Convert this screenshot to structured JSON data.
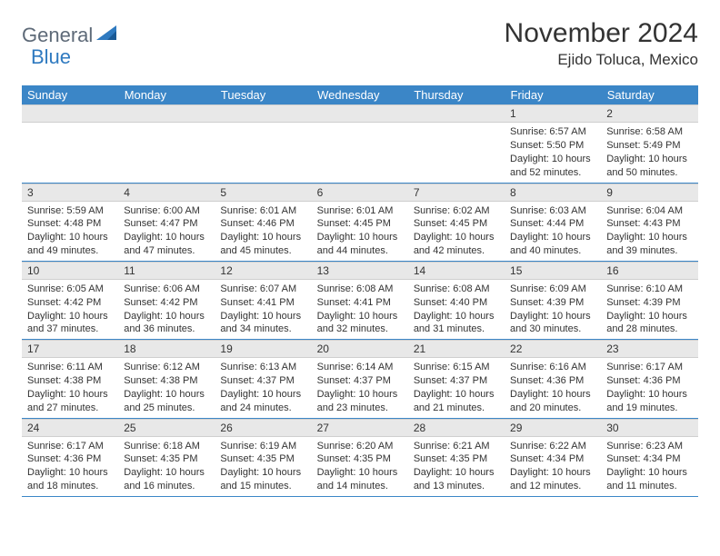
{
  "logo": {
    "part1": "General",
    "part2": "Blue"
  },
  "title": "November 2024",
  "location": "Ejido Toluca, Mexico",
  "colors": {
    "header_bg": "#3b86c7",
    "header_text": "#ffffff",
    "daynum_bg": "#e8e8e8",
    "border": "#3b86c7",
    "logo_gray": "#5e6a78",
    "logo_blue": "#2f7ac0",
    "text": "#333333",
    "page_bg": "#ffffff"
  },
  "weekdays": [
    "Sunday",
    "Monday",
    "Tuesday",
    "Wednesday",
    "Thursday",
    "Friday",
    "Saturday"
  ],
  "weeks": [
    [
      null,
      null,
      null,
      null,
      null,
      {
        "n": "1",
        "sunrise": "6:57 AM",
        "sunset": "5:50 PM",
        "daylight": "10 hours and 52 minutes."
      },
      {
        "n": "2",
        "sunrise": "6:58 AM",
        "sunset": "5:49 PM",
        "daylight": "10 hours and 50 minutes."
      }
    ],
    [
      {
        "n": "3",
        "sunrise": "5:59 AM",
        "sunset": "4:48 PM",
        "daylight": "10 hours and 49 minutes."
      },
      {
        "n": "4",
        "sunrise": "6:00 AM",
        "sunset": "4:47 PM",
        "daylight": "10 hours and 47 minutes."
      },
      {
        "n": "5",
        "sunrise": "6:01 AM",
        "sunset": "4:46 PM",
        "daylight": "10 hours and 45 minutes."
      },
      {
        "n": "6",
        "sunrise": "6:01 AM",
        "sunset": "4:45 PM",
        "daylight": "10 hours and 44 minutes."
      },
      {
        "n": "7",
        "sunrise": "6:02 AM",
        "sunset": "4:45 PM",
        "daylight": "10 hours and 42 minutes."
      },
      {
        "n": "8",
        "sunrise": "6:03 AM",
        "sunset": "4:44 PM",
        "daylight": "10 hours and 40 minutes."
      },
      {
        "n": "9",
        "sunrise": "6:04 AM",
        "sunset": "4:43 PM",
        "daylight": "10 hours and 39 minutes."
      }
    ],
    [
      {
        "n": "10",
        "sunrise": "6:05 AM",
        "sunset": "4:42 PM",
        "daylight": "10 hours and 37 minutes."
      },
      {
        "n": "11",
        "sunrise": "6:06 AM",
        "sunset": "4:42 PM",
        "daylight": "10 hours and 36 minutes."
      },
      {
        "n": "12",
        "sunrise": "6:07 AM",
        "sunset": "4:41 PM",
        "daylight": "10 hours and 34 minutes."
      },
      {
        "n": "13",
        "sunrise": "6:08 AM",
        "sunset": "4:41 PM",
        "daylight": "10 hours and 32 minutes."
      },
      {
        "n": "14",
        "sunrise": "6:08 AM",
        "sunset": "4:40 PM",
        "daylight": "10 hours and 31 minutes."
      },
      {
        "n": "15",
        "sunrise": "6:09 AM",
        "sunset": "4:39 PM",
        "daylight": "10 hours and 30 minutes."
      },
      {
        "n": "16",
        "sunrise": "6:10 AM",
        "sunset": "4:39 PM",
        "daylight": "10 hours and 28 minutes."
      }
    ],
    [
      {
        "n": "17",
        "sunrise": "6:11 AM",
        "sunset": "4:38 PM",
        "daylight": "10 hours and 27 minutes."
      },
      {
        "n": "18",
        "sunrise": "6:12 AM",
        "sunset": "4:38 PM",
        "daylight": "10 hours and 25 minutes."
      },
      {
        "n": "19",
        "sunrise": "6:13 AM",
        "sunset": "4:37 PM",
        "daylight": "10 hours and 24 minutes."
      },
      {
        "n": "20",
        "sunrise": "6:14 AM",
        "sunset": "4:37 PM",
        "daylight": "10 hours and 23 minutes."
      },
      {
        "n": "21",
        "sunrise": "6:15 AM",
        "sunset": "4:37 PM",
        "daylight": "10 hours and 21 minutes."
      },
      {
        "n": "22",
        "sunrise": "6:16 AM",
        "sunset": "4:36 PM",
        "daylight": "10 hours and 20 minutes."
      },
      {
        "n": "23",
        "sunrise": "6:17 AM",
        "sunset": "4:36 PM",
        "daylight": "10 hours and 19 minutes."
      }
    ],
    [
      {
        "n": "24",
        "sunrise": "6:17 AM",
        "sunset": "4:36 PM",
        "daylight": "10 hours and 18 minutes."
      },
      {
        "n": "25",
        "sunrise": "6:18 AM",
        "sunset": "4:35 PM",
        "daylight": "10 hours and 16 minutes."
      },
      {
        "n": "26",
        "sunrise": "6:19 AM",
        "sunset": "4:35 PM",
        "daylight": "10 hours and 15 minutes."
      },
      {
        "n": "27",
        "sunrise": "6:20 AM",
        "sunset": "4:35 PM",
        "daylight": "10 hours and 14 minutes."
      },
      {
        "n": "28",
        "sunrise": "6:21 AM",
        "sunset": "4:35 PM",
        "daylight": "10 hours and 13 minutes."
      },
      {
        "n": "29",
        "sunrise": "6:22 AM",
        "sunset": "4:34 PM",
        "daylight": "10 hours and 12 minutes."
      },
      {
        "n": "30",
        "sunrise": "6:23 AM",
        "sunset": "4:34 PM",
        "daylight": "10 hours and 11 minutes."
      }
    ]
  ],
  "labels": {
    "sunrise": "Sunrise:",
    "sunset": "Sunset:",
    "daylight": "Daylight:"
  }
}
